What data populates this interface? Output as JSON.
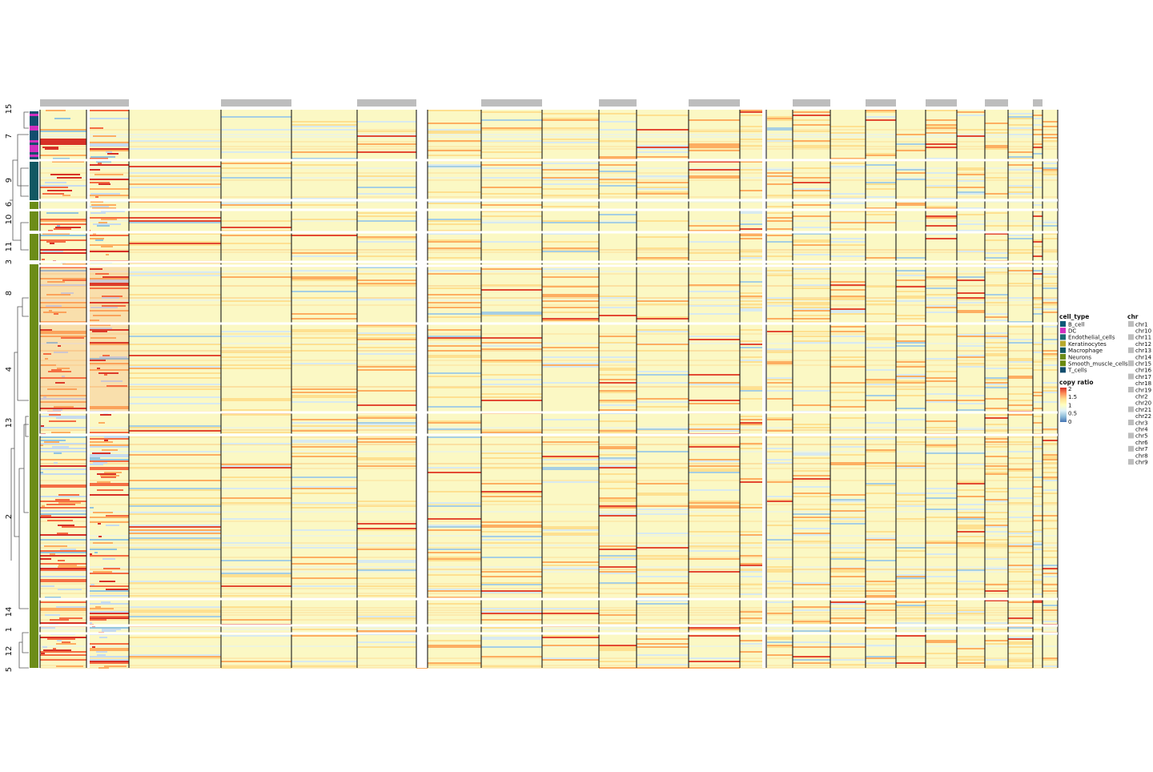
{
  "chart_data": {
    "type": "heatmap",
    "title": "",
    "xlabel": "",
    "ylabel": "",
    "cluster_labels": [
      "15",
      "7",
      "9",
      "6",
      "10",
      "11",
      "3",
      "8",
      "4",
      "13",
      "2",
      "14",
      "1",
      "12",
      "5"
    ],
    "cell_type_legend": {
      "title": "cell_type",
      "entries": [
        {
          "label": "B_cell",
          "color": "#0e5a78"
        },
        {
          "label": "DC",
          "color": "#d12fbf"
        },
        {
          "label": "Endothelial_cells",
          "color": "#1d6a74"
        },
        {
          "label": "Keratinocytes",
          "color": "#b8a92c"
        },
        {
          "label": "Macrophage",
          "color": "#125863"
        },
        {
          "label": "Neurons",
          "color": "#6c8c18"
        },
        {
          "label": "Smooth_muscle_cells",
          "color": "#6a8a10"
        },
        {
          "label": "T_cells",
          "color": "#124e6e"
        }
      ]
    },
    "copy_ratio_legend": {
      "title": "copy ratio",
      "ticks": [
        "2",
        "1.5",
        "1",
        "0.5",
        "0"
      ],
      "colors": [
        "#d73027",
        "#fc8d59",
        "#fee090",
        "#ffffbf",
        "#e0f3f8",
        "#91bfdb",
        "#4575b4"
      ]
    },
    "chr_legend": {
      "title": "chr",
      "entries": [
        "chr1",
        "chr10",
        "chr11",
        "chr12",
        "chr13",
        "chr14",
        "chr15",
        "chr16",
        "chr17",
        "chr18",
        "chr19",
        "chr2",
        "chr20",
        "chr21",
        "chr22",
        "chr3",
        "chr4",
        "chr5",
        "chr6",
        "chr7",
        "chr8",
        "chr9"
      ],
      "colors": [
        "#bdbdbd",
        "#ffffff",
        "#bdbdbd",
        "#ffffff",
        "#bdbdbd",
        "#ffffff",
        "#bdbdbd",
        "#ffffff",
        "#bdbdbd",
        "#ffffff",
        "#bdbdbd",
        "#ffffff",
        "#ffffff",
        "#bdbdbd",
        "#ffffff",
        "#bdbdbd",
        "#ffffff",
        "#bdbdbd",
        "#ffffff",
        "#bdbdbd",
        "#ffffff",
        "#bdbdbd"
      ]
    }
  }
}
